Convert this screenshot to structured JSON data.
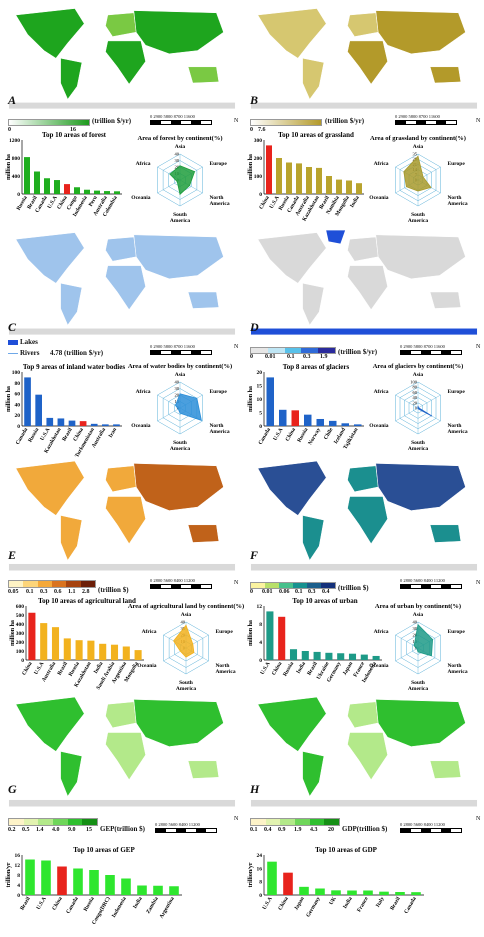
{
  "scale": {
    "numbers": "0  2900  5800  8700  11600",
    "numbers_b": "0  2800  5600  8400  11200",
    "km": "km",
    "north": "N"
  },
  "panels": [
    {
      "letter": "A",
      "unit": "(trillion $/yr)",
      "ticks": [
        "0",
        "16"
      ],
      "colors": [
        "#ffffff",
        "#1d9a1d"
      ]
    },
    {
      "letter": "B",
      "unit": "(trillion $/yr)",
      "ticks": [
        "0",
        "7.6"
      ],
      "colors": [
        "#ffffff",
        "#b39a2a"
      ]
    },
    {
      "letter": "C",
      "unit": "4.78  (trillion $/yr)",
      "legend": [
        "Lakes",
        "Rivers"
      ]
    },
    {
      "letter": "D",
      "unit": "(trillion $/yr)",
      "ticks": [
        "0",
        "0.01",
        "0.1",
        "0.3",
        "1.9"
      ]
    },
    {
      "letter": "E",
      "unit": "(trillion $)",
      "ticks": [
        "0.05",
        "0.1",
        "0.3",
        "0.6",
        "1.1",
        "2.8"
      ]
    },
    {
      "letter": "F",
      "unit": "(trillion $)",
      "ticks": [
        "0",
        "0.01",
        "0.06",
        "0.1",
        "0.3",
        "0.4"
      ]
    },
    {
      "letter": "G",
      "unit": "GEP(trillion $)",
      "ticks": [
        "0.2",
        "0.5",
        "1.4",
        "4.0",
        "9.0",
        "15"
      ]
    },
    {
      "letter": "H",
      "unit": "GDP(trillion $)",
      "ticks": [
        "0.1",
        "0.4",
        "0.9",
        "1.9",
        "4.3",
        "20"
      ]
    }
  ],
  "chart_data": [
    {
      "type": "bar",
      "title": "Top 10 areas of forest",
      "ylabel": "million ha",
      "ylim": [
        0,
        1200
      ],
      "yticks": [
        0,
        400,
        800,
        1200
      ],
      "categories": [
        "Russia",
        "Brazil",
        "Canada",
        "U.S.A",
        "China",
        "Congo",
        "Indonesia",
        "Peru",
        "Australia",
        "Colombia"
      ],
      "values": [
        820,
        500,
        350,
        310,
        220,
        150,
        95,
        75,
        65,
        60
      ],
      "highlight": 4,
      "color": "#1fae1f"
    },
    {
      "type": "bar",
      "title": "Top 10 areas of grassland",
      "ylabel": "million ha",
      "ylim": [
        0,
        300
      ],
      "yticks": [
        0,
        100,
        200,
        300
      ],
      "categories": [
        "China",
        "U.S.A",
        "Russia",
        "Canada",
        "Australia",
        "Kazakhstan",
        "Brazil",
        "Namibia",
        "Mongolia",
        "India"
      ],
      "values": [
        270,
        200,
        175,
        170,
        150,
        145,
        100,
        80,
        75,
        60
      ],
      "highlight": 0,
      "color": "#b8a32e"
    },
    {
      "type": "bar",
      "title": "Top 9 areas of inland water bodies",
      "ylabel": "million ha",
      "ylim": [
        0,
        100
      ],
      "yticks": [
        0,
        20,
        40,
        60,
        80,
        100
      ],
      "categories": [
        "Canada",
        "Russia",
        "U.S.A",
        "Kazakhstan",
        "Brazil",
        "China",
        "Turkmenistan",
        "Australia",
        "Iran"
      ],
      "values": [
        90,
        58,
        15,
        14,
        10,
        9,
        4,
        3,
        3
      ],
      "highlight": 5,
      "color": "#1f63c8"
    },
    {
      "type": "bar",
      "title": "Top 8 areas of glaciers",
      "ylabel": "million ha",
      "ylim": [
        0,
        20
      ],
      "yticks": [
        0,
        5,
        10,
        15,
        20
      ],
      "categories": [
        "Canada",
        "U.S.A",
        "China",
        "Russia",
        "Norway",
        "Chile",
        "Iceland",
        "Tajikistan"
      ],
      "values": [
        18,
        6,
        5.8,
        4.2,
        2.6,
        1.9,
        1.0,
        0.6
      ],
      "highlight": 2,
      "color": "#1f63c8"
    },
    {
      "type": "bar",
      "title": "Top 10 areas of agricultural land",
      "ylabel": "million ha",
      "ylim": [
        0,
        600
      ],
      "yticks": [
        0,
        100,
        200,
        300,
        400,
        500,
        600
      ],
      "categories": [
        "China",
        "U.S.A",
        "Australia",
        "Brazil",
        "Russia",
        "Kazakhstan",
        "India",
        "Saudi Arabia",
        "Argentina",
        "Mongolia"
      ],
      "values": [
        525,
        410,
        365,
        240,
        220,
        215,
        180,
        170,
        150,
        110
      ],
      "highlight": 0,
      "color": "#f2b21e"
    },
    {
      "type": "bar",
      "title": "Top 10 areas of urban",
      "ylabel": "million ha",
      "ylim": [
        0,
        12
      ],
      "yticks": [
        0,
        4,
        8,
        12
      ],
      "categories": [
        "U.S.A",
        "China",
        "Russia",
        "India",
        "Brazil",
        "Ukraine",
        "Germany",
        "Japan",
        "France",
        "Indonesia"
      ],
      "values": [
        10.8,
        9.6,
        2.4,
        2.0,
        1.8,
        1.6,
        1.5,
        1.4,
        1.2,
        0.9
      ],
      "highlight": 1,
      "color": "#1d9a87"
    },
    {
      "type": "bar",
      "title": "Top 10 areas of GEP",
      "ylabel": "trillion/yr",
      "ylim": [
        0,
        16
      ],
      "yticks": [
        0,
        4,
        8,
        12,
        16
      ],
      "categories": [
        "Brazil",
        "U.S.A",
        "China",
        "Canada",
        "Russia",
        "Congo(DRC)",
        "Indonesia",
        "India",
        "Zambia",
        "Argentina"
      ],
      "values": [
        14.2,
        13.8,
        11.4,
        10.6,
        10.0,
        8.0,
        6.6,
        3.8,
        3.7,
        3.5
      ],
      "highlight": 2,
      "color": "#2ee62e"
    },
    {
      "type": "bar",
      "title": "Top 10 areas of GDP",
      "ylabel": "trillion/yr",
      "ylim": [
        0,
        24
      ],
      "yticks": [
        0,
        8,
        16,
        24
      ],
      "categories": [
        "U.S.A",
        "China",
        "Japan",
        "Germany",
        "UK",
        "India",
        "France",
        "Italy",
        "Brazil",
        "Canada"
      ],
      "values": [
        20,
        13.4,
        4.9,
        3.9,
        2.8,
        2.7,
        2.7,
        2.0,
        1.8,
        1.7
      ],
      "highlight": 1,
      "color": "#2ee62e"
    },
    {
      "type": "radar",
      "title": "Area of forest by continent(%)",
      "axes": [
        "Asia",
        "Europe",
        "North America",
        "South America",
        "Oceania",
        "Africa"
      ],
      "rticks": [
        "0",
        "10",
        "20",
        "30",
        "40"
      ],
      "values": [
        22,
        26,
        17,
        22,
        5,
        18
      ],
      "color": "#1e9e3c"
    },
    {
      "type": "radar",
      "title": "Area of grassland by continent(%)",
      "axes": [
        "Asia",
        "Europe",
        "North America",
        "South America",
        "Oceania",
        "Africa"
      ],
      "rticks": [
        "0",
        "7",
        "14",
        "21",
        "28",
        "35"
      ],
      "values": [
        32,
        8,
        20,
        15,
        18,
        22
      ],
      "color": "#a89a2c"
    },
    {
      "type": "radar",
      "title": "Area of water bodies by continent(%)",
      "axes": [
        "Asia",
        "Europe",
        "North America",
        "South America",
        "Oceania",
        "Africa"
      ],
      "rticks": [
        "0",
        "10",
        "20",
        "30",
        "40"
      ],
      "values": [
        22,
        30,
        38,
        8,
        3,
        8
      ],
      "color": "#2b8ed8"
    },
    {
      "type": "radar",
      "title": "Area of glaciers by continent(%)",
      "axes": [
        "Asia",
        "Europe",
        "North America",
        "South America",
        "Oceania",
        "Africa"
      ],
      "rticks": [
        "0",
        "20",
        "40",
        "60",
        "80",
        "100"
      ],
      "values": [
        8,
        2,
        62,
        3,
        0,
        0
      ],
      "color": "#1f63c8"
    },
    {
      "type": "radar",
      "title": "Area of agricultural land by continent(%)",
      "axes": [
        "Asia",
        "Europe",
        "North America",
        "South America",
        "Oceania",
        "Africa"
      ],
      "rticks": [
        "0",
        "10",
        "20",
        "30",
        "40"
      ],
      "values": [
        35,
        12,
        14,
        14,
        10,
        22
      ],
      "color": "#f2b21e"
    },
    {
      "type": "radar",
      "title": "Area of urban by continent(%)",
      "axes": [
        "Asia",
        "Europe",
        "North America",
        "South America",
        "Oceania",
        "Africa"
      ],
      "rticks": [
        "0",
        "10",
        "20",
        "30",
        "40"
      ],
      "values": [
        36,
        26,
        24,
        6,
        2,
        7
      ],
      "color": "#1d9a87"
    }
  ]
}
